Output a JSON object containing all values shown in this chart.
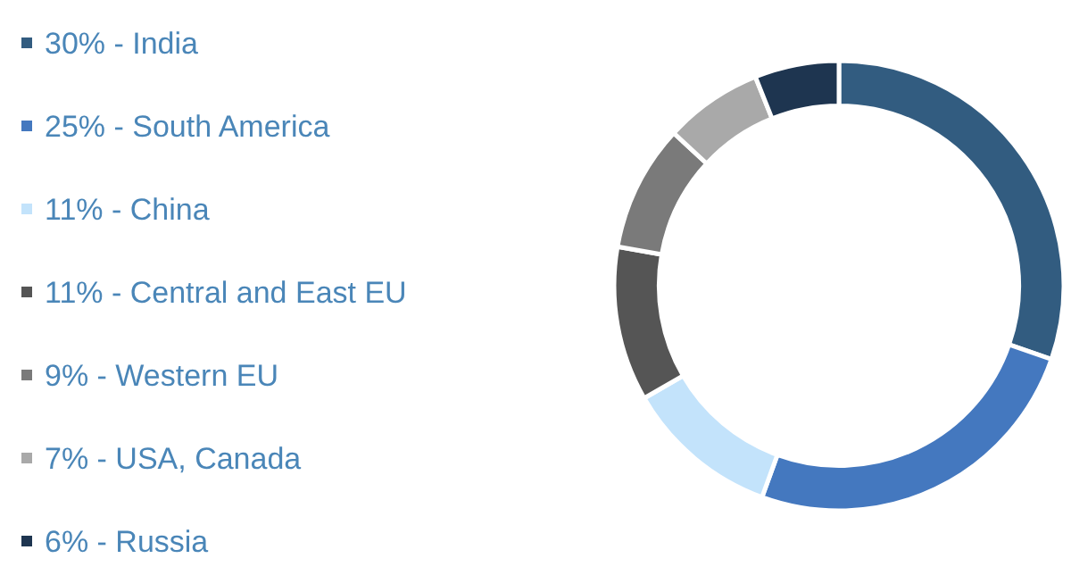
{
  "chart_data": {
    "type": "donut",
    "categories": [
      "30% - India",
      "25% - South America",
      "11% - China",
      "11% - Central and East EU",
      "9% - Western EU",
      "7% - USA, Canada",
      "6% - Russia"
    ],
    "values": [
      30,
      25,
      11,
      11,
      9,
      7,
      6
    ],
    "colors": [
      "#325c80",
      "#4478bf",
      "#c3e3fb",
      "#555555",
      "#7a7a7a",
      "#a9a9a9",
      "#1e3550"
    ],
    "legend": "left"
  }
}
